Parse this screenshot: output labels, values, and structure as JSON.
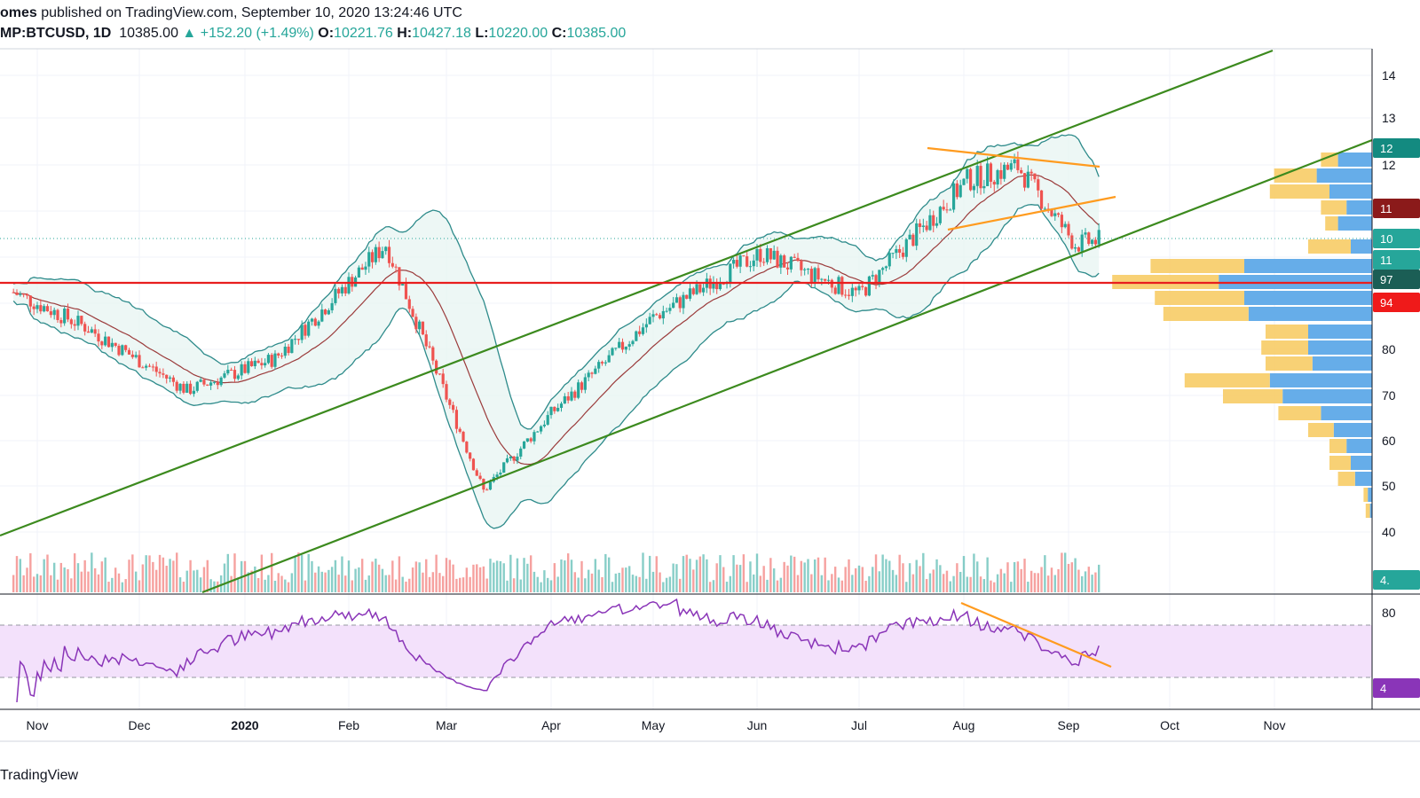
{
  "header": {
    "author": "omes",
    "published_text": " published on TradingView.com, September 10, 2020 13:24:46 UTC",
    "symbol": "MP:BTCUSD, 1D",
    "last_price": "10385.00",
    "change": "+152.20 (+1.49%)",
    "o_label": "O:",
    "o_value": "10221.76",
    "h_label": "H:",
    "h_value": "10427.18",
    "l_label": "L:",
    "l_value": "10220.00",
    "c_label": "C:",
    "c_value": "10385.00"
  },
  "footer": {
    "brand": "TradingView"
  },
  "colors": {
    "up": "#26a69a",
    "down": "#ef5350",
    "channel": "#3c8a1e",
    "support": "#e81e1e",
    "wedge": "#ff9b1f",
    "bb": "#2e8b8b",
    "bb_fill": "#e6f4f1",
    "rsi_line": "#8a35b8",
    "rsi_band": "#f3e1fb",
    "vp_up": "#5ea9e8",
    "vp_down": "#f7cc66"
  },
  "chart_data": {
    "type": "candlestick",
    "xlabel": "",
    "ylabel": "",
    "x_ticks": [
      "Nov",
      "Dec",
      "2020",
      "Feb",
      "Mar",
      "Apr",
      "May",
      "Jun",
      "Jul",
      "Aug",
      "Sep",
      "Oct",
      "Nov"
    ],
    "y_ticks": [
      "14",
      "13",
      "12",
      "80",
      "70",
      "60",
      "50",
      "40"
    ],
    "y_range_approx": [
      3000,
      14500
    ],
    "price_tags": [
      {
        "text": "12",
        "color": "#138a80"
      },
      {
        "text": "11",
        "color": "#8b1a1a"
      },
      {
        "text": "10",
        "color": "#26a69a"
      },
      {
        "text": "11",
        "color": "#26a69a"
      },
      {
        "text": "97",
        "color": "#1b5e55"
      },
      {
        "text": "94",
        "color": "#ef1a1a"
      },
      {
        "text": "4.",
        "color": "#26a69a"
      }
    ],
    "close_path_approx": [
      {
        "x": "2019-10-25",
        "y": 9250
      },
      {
        "x": "2019-11-15",
        "y": 8500
      },
      {
        "x": "2019-12-15",
        "y": 7100
      },
      {
        "x": "2020-01-10",
        "y": 7800
      },
      {
        "x": "2020-02-12",
        "y": 10300
      },
      {
        "x": "2020-03-12",
        "y": 4900
      },
      {
        "x": "2020-04-01",
        "y": 6600
      },
      {
        "x": "2020-05-01",
        "y": 8700
      },
      {
        "x": "2020-06-02",
        "y": 10100
      },
      {
        "x": "2020-07-01",
        "y": 9200
      },
      {
        "x": "2020-08-02",
        "y": 11700
      },
      {
        "x": "2020-08-17",
        "y": 12000
      },
      {
        "x": "2020-09-03",
        "y": 10300
      },
      {
        "x": "2020-09-10",
        "y": 10385
      }
    ],
    "indicators": [
      {
        "name": "RSI",
        "level_ticks": [
          "80"
        ],
        "last_tag": "4"
      },
      {
        "name": "Bollinger Bands"
      },
      {
        "name": "Volume"
      },
      {
        "name": "Volume Profile"
      }
    ],
    "drawings": [
      "ascending channel (2 green lines)",
      "horizontal support (red)",
      "orange wedge lines",
      "orange RSI trendline"
    ],
    "grid": true
  }
}
